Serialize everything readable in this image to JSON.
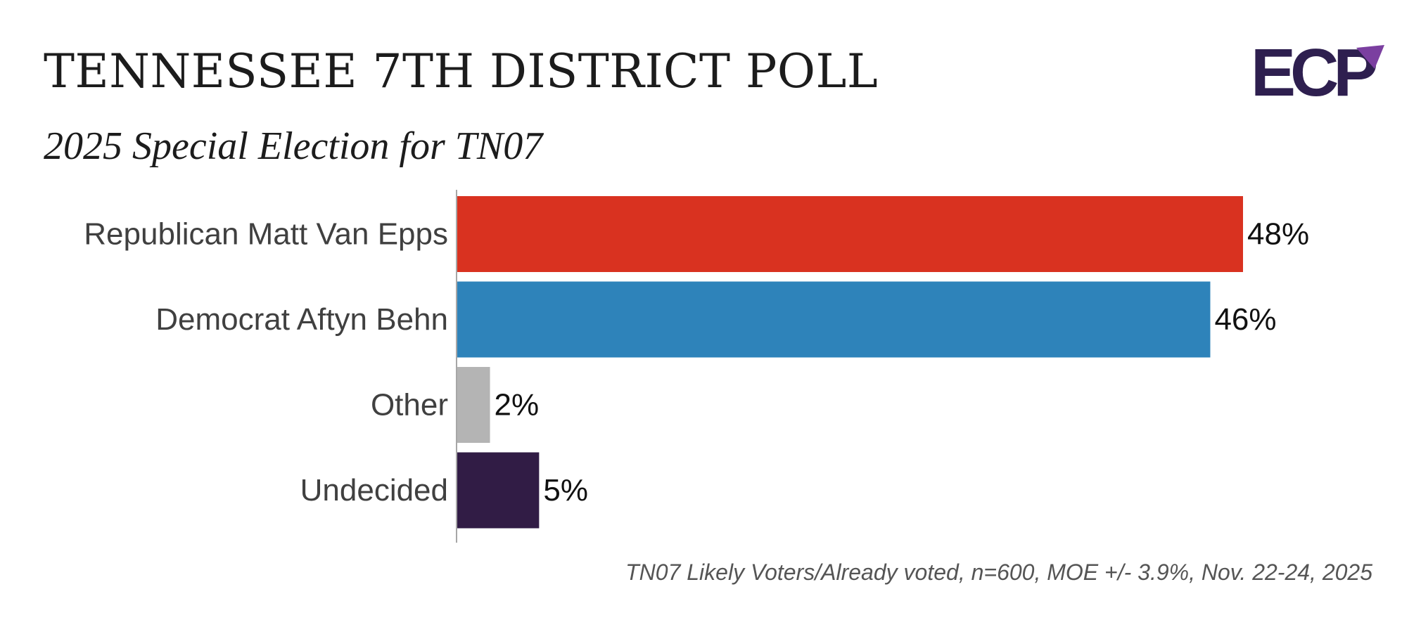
{
  "title": "TENNESSEE 7TH DISTRICT POLL",
  "subtitle": "2025 Special Election for TN07",
  "logo": {
    "text": "ECP",
    "colors": {
      "dark": "#2e1f4f",
      "accent": "#7b3fa0"
    }
  },
  "footnote": "TN07 Likely Voters/Already voted, n=600, MOE +/- 3.9%, Nov. 22-24, 2025",
  "chart_data": {
    "type": "bar",
    "orientation": "horizontal",
    "categories": [
      "Republican Matt Van Epps",
      "Democrat Aftyn Behn",
      "Other",
      "Undecided"
    ],
    "values": [
      48,
      46,
      2,
      5
    ],
    "value_labels": [
      "48%",
      "46%",
      "2%",
      "5%"
    ],
    "colors": [
      "#d93220",
      "#2e83ba",
      "#b4b4b4",
      "#311c45"
    ],
    "unit": "%",
    "xlim": [
      0,
      48
    ],
    "grid": false,
    "legend": "none"
  }
}
